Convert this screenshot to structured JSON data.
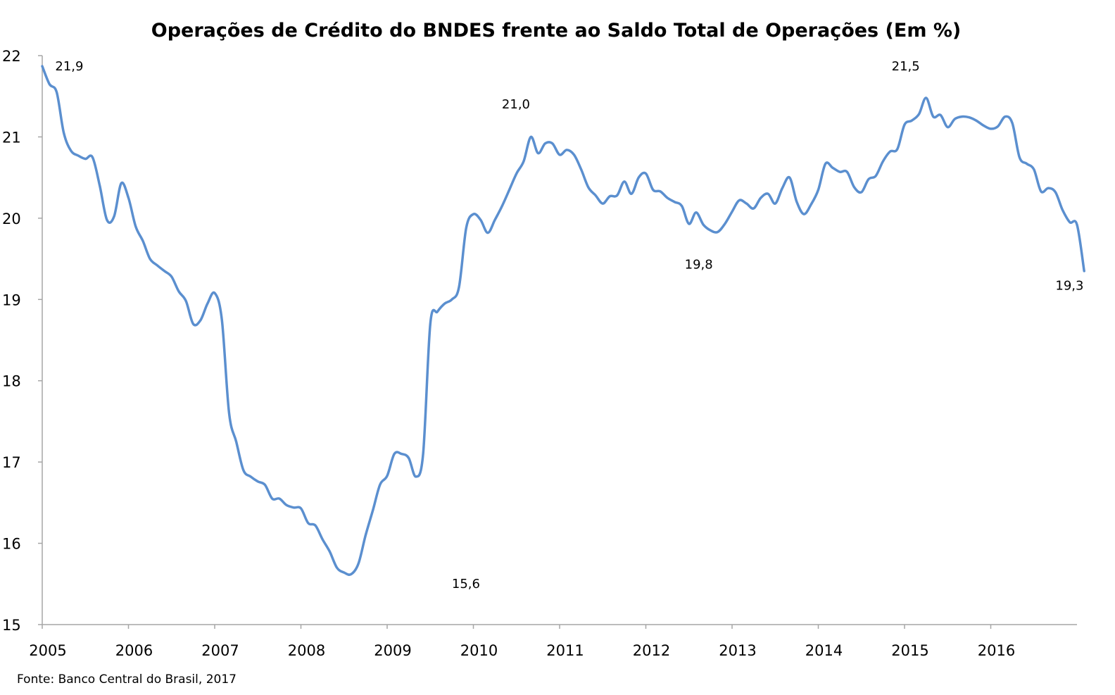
{
  "chart_data": {
    "type": "line",
    "title": "Operações de Crédito do BNDES frente ao Saldo Total de Operações (Em %)",
    "xlabel": "",
    "ylabel": "",
    "x_start": 2005,
    "x_end": 2017,
    "xticks": [
      {
        "label": "2005",
        "value": 2005
      },
      {
        "label": "2006",
        "value": 2006
      },
      {
        "label": "2007",
        "value": 2007
      },
      {
        "label": "2008",
        "value": 2008
      },
      {
        "label": "2009",
        "value": 2009
      },
      {
        "label": "2010",
        "value": 2010
      },
      {
        "label": "2011",
        "value": 2011
      },
      {
        "label": "2012",
        "value": 2012
      },
      {
        "label": "2013",
        "value": 2013
      },
      {
        "label": "2014",
        "value": 2014
      },
      {
        "label": "2015",
        "value": 2015
      },
      {
        "label": "2016",
        "value": 2016
      }
    ],
    "ylim": [
      15,
      22
    ],
    "yticks": [
      15,
      16,
      17,
      18,
      19,
      20,
      21,
      22
    ],
    "grid": false,
    "legend": "none",
    "color": "#5B8FCF",
    "series": [
      {
        "values": [
          [
            2005.0,
            21.87
          ],
          [
            2005.083,
            21.65
          ],
          [
            2005.167,
            21.55
          ],
          [
            2005.25,
            21.05
          ],
          [
            2005.333,
            20.83
          ],
          [
            2005.417,
            20.77
          ],
          [
            2005.5,
            20.73
          ],
          [
            2005.583,
            20.75
          ],
          [
            2005.667,
            20.4
          ],
          [
            2005.75,
            19.98
          ],
          [
            2005.833,
            20.02
          ],
          [
            2005.917,
            20.43
          ],
          [
            2006.0,
            20.25
          ],
          [
            2006.083,
            19.9
          ],
          [
            2006.167,
            19.72
          ],
          [
            2006.25,
            19.5
          ],
          [
            2006.333,
            19.42
          ],
          [
            2006.417,
            19.35
          ],
          [
            2006.5,
            19.28
          ],
          [
            2006.583,
            19.1
          ],
          [
            2006.667,
            18.98
          ],
          [
            2006.75,
            18.7
          ],
          [
            2006.833,
            18.74
          ],
          [
            2006.917,
            18.95
          ],
          [
            2007.0,
            19.08
          ],
          [
            2007.083,
            18.75
          ],
          [
            2007.167,
            17.6
          ],
          [
            2007.25,
            17.25
          ],
          [
            2007.333,
            16.9
          ],
          [
            2007.417,
            16.82
          ],
          [
            2007.5,
            16.76
          ],
          [
            2007.583,
            16.72
          ],
          [
            2007.667,
            16.55
          ],
          [
            2007.75,
            16.55
          ],
          [
            2007.833,
            16.47
          ],
          [
            2007.917,
            16.44
          ],
          [
            2008.0,
            16.43
          ],
          [
            2008.083,
            16.25
          ],
          [
            2008.167,
            16.22
          ],
          [
            2008.25,
            16.05
          ],
          [
            2008.333,
            15.9
          ],
          [
            2008.417,
            15.7
          ],
          [
            2008.5,
            15.64
          ],
          [
            2008.583,
            15.62
          ],
          [
            2008.667,
            15.75
          ],
          [
            2008.75,
            16.1
          ],
          [
            2008.833,
            16.4
          ],
          [
            2008.917,
            16.72
          ],
          [
            2009.0,
            16.83
          ],
          [
            2009.083,
            17.1
          ],
          [
            2009.167,
            17.1
          ],
          [
            2009.25,
            17.05
          ],
          [
            2009.333,
            16.82
          ],
          [
            2009.417,
            17.1
          ],
          [
            2009.5,
            18.7
          ],
          [
            2009.583,
            18.85
          ],
          [
            2009.667,
            18.95
          ],
          [
            2009.75,
            19.0
          ],
          [
            2009.833,
            19.15
          ],
          [
            2009.917,
            19.88
          ],
          [
            2010.0,
            20.05
          ],
          [
            2010.083,
            19.98
          ],
          [
            2010.167,
            19.82
          ],
          [
            2010.25,
            19.98
          ],
          [
            2010.333,
            20.15
          ],
          [
            2010.417,
            20.35
          ],
          [
            2010.5,
            20.55
          ],
          [
            2010.583,
            20.7
          ],
          [
            2010.667,
            21.0
          ],
          [
            2010.75,
            20.8
          ],
          [
            2010.833,
            20.92
          ],
          [
            2010.917,
            20.92
          ],
          [
            2011.0,
            20.78
          ],
          [
            2011.083,
            20.84
          ],
          [
            2011.167,
            20.78
          ],
          [
            2011.25,
            20.6
          ],
          [
            2011.333,
            20.38
          ],
          [
            2011.417,
            20.28
          ],
          [
            2011.5,
            20.18
          ],
          [
            2011.583,
            20.27
          ],
          [
            2011.667,
            20.28
          ],
          [
            2011.75,
            20.45
          ],
          [
            2011.833,
            20.3
          ],
          [
            2011.917,
            20.5
          ],
          [
            2012.0,
            20.55
          ],
          [
            2012.083,
            20.35
          ],
          [
            2012.167,
            20.33
          ],
          [
            2012.25,
            20.25
          ],
          [
            2012.333,
            20.2
          ],
          [
            2012.417,
            20.15
          ],
          [
            2012.5,
            19.93
          ],
          [
            2012.583,
            20.07
          ],
          [
            2012.667,
            19.92
          ],
          [
            2012.75,
            19.85
          ],
          [
            2012.833,
            19.83
          ],
          [
            2012.917,
            19.93
          ],
          [
            2013.0,
            20.08
          ],
          [
            2013.083,
            20.22
          ],
          [
            2013.167,
            20.18
          ],
          [
            2013.25,
            20.12
          ],
          [
            2013.333,
            20.25
          ],
          [
            2013.417,
            20.3
          ],
          [
            2013.5,
            20.18
          ],
          [
            2013.583,
            20.37
          ],
          [
            2013.667,
            20.5
          ],
          [
            2013.75,
            20.2
          ],
          [
            2013.833,
            20.05
          ],
          [
            2013.917,
            20.17
          ],
          [
            2014.0,
            20.35
          ],
          [
            2014.083,
            20.67
          ],
          [
            2014.167,
            20.62
          ],
          [
            2014.25,
            20.57
          ],
          [
            2014.333,
            20.57
          ],
          [
            2014.417,
            20.38
          ],
          [
            2014.5,
            20.32
          ],
          [
            2014.583,
            20.48
          ],
          [
            2014.667,
            20.52
          ],
          [
            2014.75,
            20.7
          ],
          [
            2014.833,
            20.82
          ],
          [
            2014.917,
            20.85
          ],
          [
            2015.0,
            21.15
          ],
          [
            2015.083,
            21.2
          ],
          [
            2015.167,
            21.28
          ],
          [
            2015.25,
            21.48
          ],
          [
            2015.333,
            21.25
          ],
          [
            2015.417,
            21.27
          ],
          [
            2015.5,
            21.12
          ],
          [
            2015.583,
            21.22
          ],
          [
            2015.667,
            21.25
          ],
          [
            2015.75,
            21.24
          ],
          [
            2015.833,
            21.2
          ],
          [
            2015.917,
            21.14
          ],
          [
            2016.0,
            21.1
          ],
          [
            2016.083,
            21.13
          ],
          [
            2016.167,
            21.25
          ],
          [
            2016.25,
            21.17
          ],
          [
            2016.333,
            20.75
          ],
          [
            2016.417,
            20.67
          ],
          [
            2016.5,
            20.6
          ],
          [
            2016.583,
            20.33
          ],
          [
            2016.667,
            20.37
          ],
          [
            2016.75,
            20.32
          ],
          [
            2016.833,
            20.1
          ],
          [
            2016.917,
            19.95
          ],
          [
            2017.0,
            19.92
          ],
          [
            2017.083,
            19.35
          ]
        ]
      }
    ],
    "annotations": [
      {
        "text": "21,9",
        "x": 2005.15,
        "y": 21.82
      },
      {
        "text": "15,6",
        "x": 2009.75,
        "y": 15.45
      },
      {
        "text": "21,0",
        "x": 2010.33,
        "y": 21.35
      },
      {
        "text": "19,8",
        "x": 2012.45,
        "y": 19.38
      },
      {
        "text": "21,5",
        "x": 2014.85,
        "y": 21.82
      },
      {
        "text": "19,3",
        "x": 2016.75,
        "y": 19.12
      }
    ]
  },
  "footer": {
    "source": "Fonte: Banco Central do Brasil, 2017"
  }
}
